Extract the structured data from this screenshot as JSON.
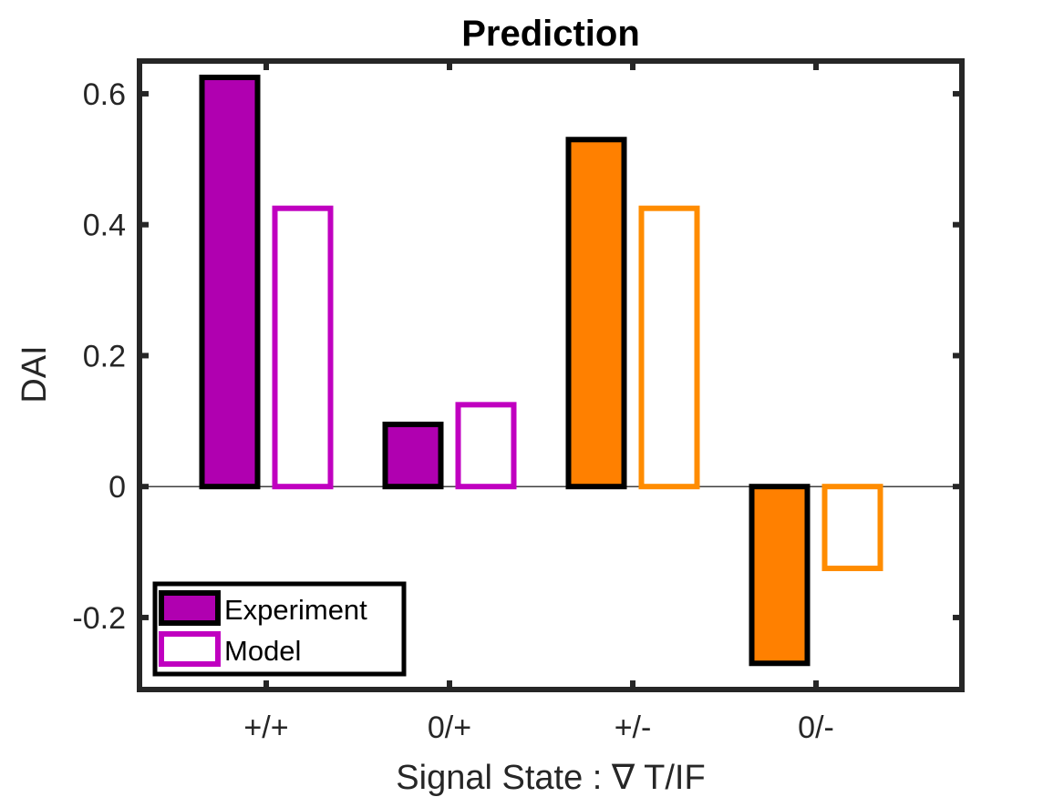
{
  "chart_data": {
    "type": "bar",
    "title": "Prediction",
    "xlabel": "Signal State : ∇ T/IF",
    "ylabel": "DAI",
    "categories": [
      "+/+",
      "0/+",
      "+/-",
      "0/-"
    ],
    "ylim": [
      -0.31,
      0.65
    ],
    "yticks": [
      -0.2,
      0,
      0.2,
      0.4,
      0.6
    ],
    "ytick_labels": [
      "-0.2",
      "0",
      "0.2",
      "0.4",
      "0.6"
    ],
    "grid": false,
    "legend_position": "bottom-left",
    "series": [
      {
        "name": "Experiment",
        "style": "filled",
        "values": [
          0.625,
          0.095,
          0.53,
          -0.27
        ],
        "colors": [
          "#b000b0",
          "#b000b0",
          "#ff8000",
          "#ff8000"
        ],
        "legend_color": "#b000b0"
      },
      {
        "name": "Model",
        "style": "outline",
        "values": [
          0.425,
          0.125,
          0.425,
          -0.125
        ],
        "colors": [
          "#c000c0",
          "#c000c0",
          "#ff8c00",
          "#ff8c00"
        ],
        "legend_color": "#c000c0"
      }
    ]
  }
}
